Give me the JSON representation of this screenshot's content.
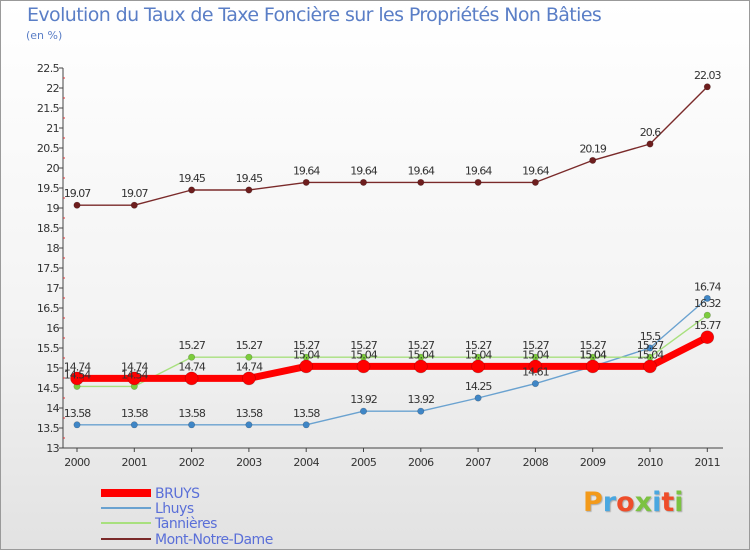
{
  "header": {
    "title": "Evolution du Taux de Taxe Foncière sur les Propriétés Non Bâties",
    "unit": "(en %)"
  },
  "logo": {
    "text": "Proxiti"
  },
  "chart_data": {
    "type": "line",
    "title": "Evolution du Taux de Taxe Foncière sur les Propriétés Non Bâties",
    "ylabel": "(en %)",
    "xlabel": "",
    "categories": [
      "2000",
      "2001",
      "2002",
      "2003",
      "2004",
      "2005",
      "2006",
      "2007",
      "2008",
      "2009",
      "2010",
      "2011"
    ],
    "ylim": [
      13,
      22.5
    ],
    "yticks": [
      "13",
      "13.5",
      "14",
      "14.5",
      "15",
      "15.5",
      "16",
      "16.5",
      "17",
      "17.5",
      "18",
      "18.5",
      "19",
      "19.5",
      "20",
      "20.5",
      "21",
      "21.5",
      "22",
      "22.5"
    ],
    "grid": false,
    "legend_position": "bottom-left",
    "series": [
      {
        "name": "BRUYS",
        "color": "#ff0000",
        "values": [
          14.74,
          14.74,
          14.74,
          14.74,
          15.04,
          15.04,
          15.04,
          15.04,
          15.04,
          15.04,
          15.04,
          15.77
        ],
        "labels": [
          "14.74",
          "14.74",
          "",
          "",
          "",
          "",
          "",
          "",
          "",
          "",
          "",
          ""
        ]
      },
      {
        "name": "Lhuys",
        "color": "#6aa2d0",
        "values": [
          13.58,
          13.58,
          13.58,
          13.58,
          13.58,
          13.92,
          13.92,
          14.25,
          14.61,
          15.04,
          15.5,
          16.74
        ],
        "labels": [
          "13.58",
          "13.58",
          "13.58",
          "13.58",
          "13.58",
          "13.92",
          "13.92",
          "14.25",
          "14.61",
          "15.04",
          "15.5",
          "16.74"
        ]
      },
      {
        "name": "Tannières",
        "color": "#a8e07e",
        "values": [
          14.54,
          14.54,
          15.27,
          15.27,
          15.27,
          15.27,
          15.27,
          15.27,
          15.27,
          15.27,
          15.27,
          16.32
        ],
        "labels": [
          "14.54",
          "14.54",
          "15.27",
          "15.27",
          "15.27",
          "15.27",
          "15.27",
          "15.27",
          "15.27",
          "15.27",
          "15.27",
          "16.32"
        ]
      },
      {
        "name": "Mont-Notre-Dame",
        "color": "#7a2a2a",
        "values": [
          19.07,
          19.07,
          19.45,
          19.45,
          19.64,
          19.64,
          19.64,
          19.64,
          19.64,
          20.19,
          20.6,
          22.03
        ],
        "labels": [
          "19.07",
          "19.07",
          "19.45",
          "19.45",
          "19.64",
          "19.64",
          "19.64",
          "19.64",
          "19.64",
          "20.19",
          "20.6",
          "22.03"
        ]
      }
    ],
    "extra_labels": [
      {
        "year_index": 2,
        "value": 14.74,
        "text": "14.74"
      },
      {
        "year_index": 3,
        "value": 14.74,
        "text": "14.74"
      },
      {
        "year_index": 4,
        "value": 15.04,
        "text": "15.04"
      },
      {
        "year_index": 5,
        "value": 15.04,
        "text": "15.04"
      },
      {
        "year_index": 6,
        "value": 15.04,
        "text": "15.04"
      },
      {
        "year_index": 7,
        "value": 15.04,
        "text": "15.04"
      },
      {
        "year_index": 8,
        "value": 15.04,
        "text": "15.04"
      },
      {
        "year_index": 9,
        "value": 15.04,
        "text": "15.04"
      },
      {
        "year_index": 10,
        "value": 15.04,
        "text": "15.04"
      },
      {
        "year_index": 11,
        "value": 15.77,
        "text": "15.77"
      }
    ]
  }
}
